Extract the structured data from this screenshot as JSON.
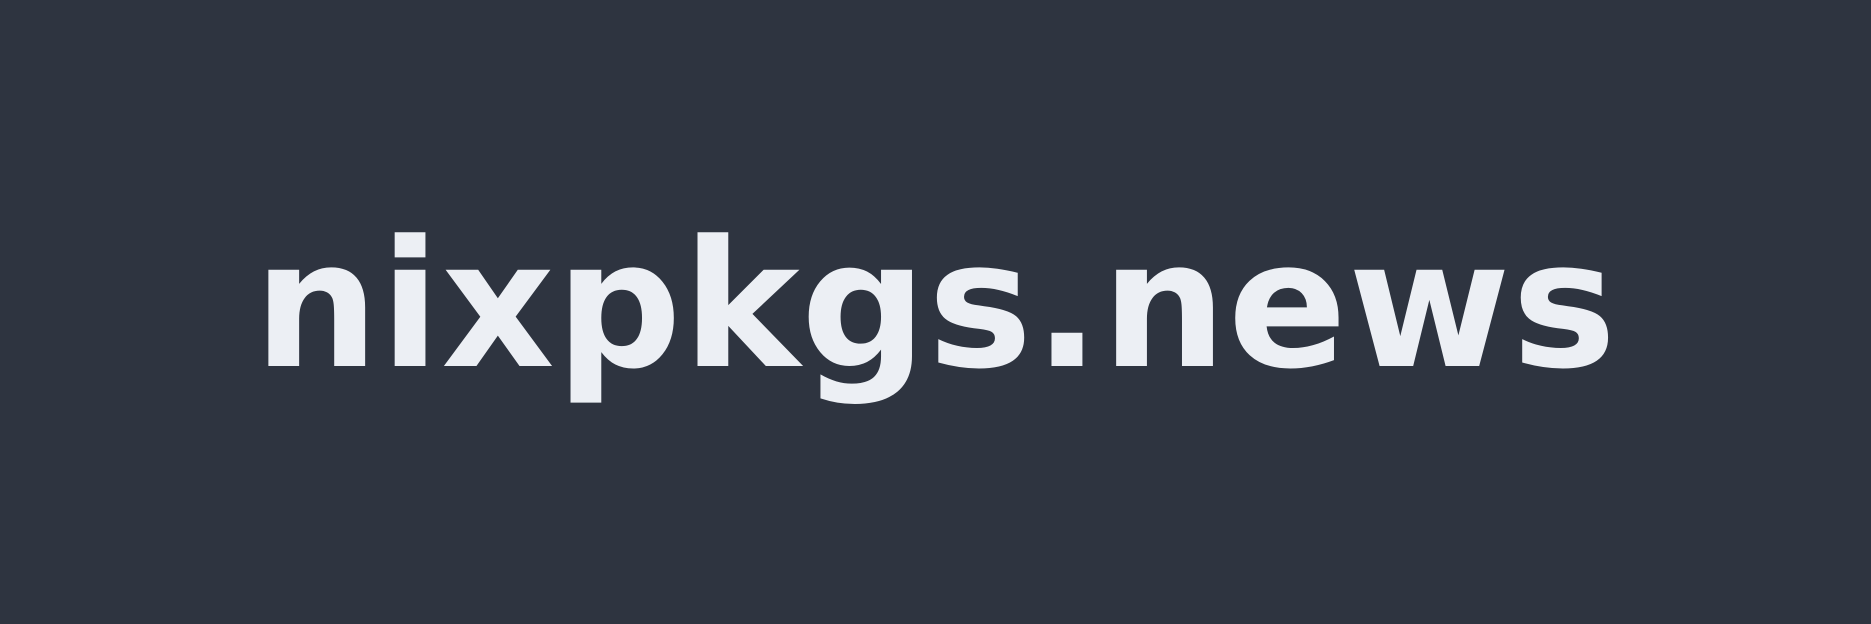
{
  "banner": {
    "wordmark": "nixpkgs.news",
    "background_color": "#2e3440",
    "text_color": "#eceff4"
  }
}
